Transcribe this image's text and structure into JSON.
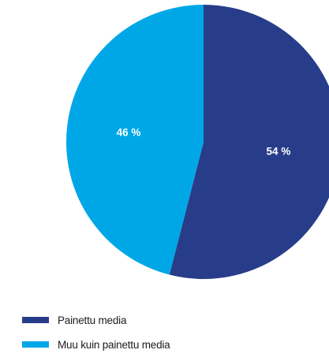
{
  "chart_data": {
    "type": "pie",
    "title": "",
    "slices": [
      {
        "label": "Painettu media",
        "value": 54,
        "value_label": "54 %",
        "color": "#283d8a"
      },
      {
        "label": "Muu kuin painettu media",
        "value": 46,
        "value_label": "46 %",
        "color": "#00a7e7"
      }
    ],
    "start_angle": "12 o'clock",
    "direction": "clockwise",
    "legend_position": "bottom-left"
  }
}
